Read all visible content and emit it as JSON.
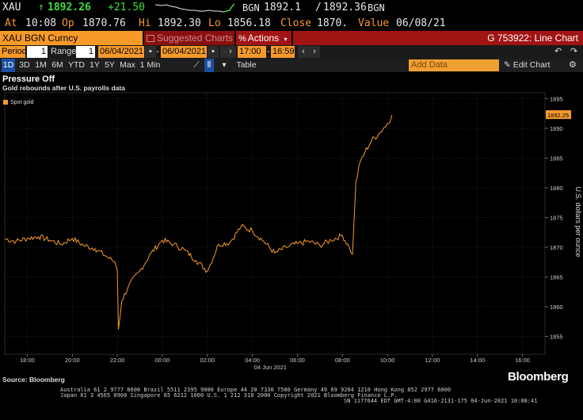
{
  "quote": {
    "ticker": "XAU",
    "arrow": "↑",
    "last": "1892.26",
    "change": "+21.50",
    "bid_source": "BGN",
    "bid": "1892.1",
    "ask_sep": "/",
    "ask": "1892.36",
    "ask_source": "BGN",
    "at_label": "At",
    "time": "10:08",
    "op_label": "Op",
    "open": "1870.76",
    "hi_label": "Hi",
    "high": "1892.30",
    "lo_label": "Lo",
    "low": "1856.18",
    "close_label": "Close",
    "close": "1870.",
    "value_label": "Value",
    "date": "06/08/21"
  },
  "security_bar": {
    "security": "XAU BGN Curncy",
    "suggested": "Suggested Charts",
    "actions": "Actions",
    "actions_icon": "percent-icon",
    "function_title": "G 753922: Line Chart"
  },
  "range_bar": {
    "period_label": "Period",
    "period_value": "1",
    "range_label": "Range",
    "range_value": "1",
    "start_date": "06/04/2021",
    "end_date": "06/04/2021",
    "start_time": "17:00",
    "end_time": "16:59"
  },
  "tabs_bar": {
    "tabs": [
      "1D",
      "3D",
      "1M",
      "6M",
      "YTD",
      "1Y",
      "5Y",
      "Max",
      "1 Min"
    ],
    "active_tab": "1D",
    "table_label": "Table",
    "add_data_placeholder": "Add Data",
    "edit_chart": "Edit Chart"
  },
  "chart_header": {
    "title": "Pressure Off",
    "subtitle": "Gold rebounds after U.S. payrolls data"
  },
  "chart_data": {
    "type": "line",
    "title": "Pressure Off",
    "subtitle": "Gold rebounds after U.S. payrolls data",
    "ylabel": "U.S. dollars per ounce",
    "xlabel": "04 Jun 2021",
    "ylim": [
      1852,
      1896
    ],
    "xlim": [
      17,
      41
    ],
    "y_ticks": [
      1855,
      1860,
      1865,
      1870,
      1875,
      1880,
      1885,
      1890,
      1895
    ],
    "x_tick_labels": [
      "18:00",
      "20:00",
      "22:00",
      "00:00",
      "02:00",
      "04:00",
      "06:00",
      "08:00",
      "10:00",
      "12:00",
      "14:00",
      "16:00"
    ],
    "x_ticks": [
      18,
      20,
      22,
      24,
      26,
      28,
      30,
      32,
      34,
      36,
      38,
      40
    ],
    "last_value_label": "1892.25",
    "legend_position": "top-left",
    "grid": true,
    "series": [
      {
        "name": "Spot gold",
        "color": "#f79a2a",
        "x": [
          17.0,
          17.5,
          18.0,
          18.5,
          19.0,
          19.5,
          20.0,
          20.5,
          21.0,
          21.5,
          21.9,
          22.0,
          22.05,
          22.2,
          22.5,
          23.0,
          23.5,
          24.0,
          24.5,
          25.0,
          25.5,
          26.0,
          26.5,
          27.0,
          27.5,
          28.0,
          28.5,
          29.0,
          29.5,
          30.0,
          30.5,
          31.0,
          31.5,
          32.0,
          32.3,
          32.45,
          32.6,
          32.8,
          33.0,
          33.3,
          33.6,
          34.0,
          34.2
        ],
        "y": [
          1871.4,
          1871.0,
          1871.5,
          1871.8,
          1871.2,
          1870.5,
          1871.5,
          1870.3,
          1869.8,
          1868.5,
          1867.5,
          1866.0,
          1856.2,
          1861.0,
          1863.5,
          1866.0,
          1869.0,
          1871.2,
          1870.5,
          1869.5,
          1867.8,
          1866.0,
          1870.5,
          1870.8,
          1873.5,
          1872.8,
          1871.0,
          1869.0,
          1870.0,
          1870.6,
          1871.0,
          1870.3,
          1871.2,
          1872.0,
          1870.0,
          1868.8,
          1881.0,
          1884.5,
          1886.0,
          1888.0,
          1889.0,
          1890.8,
          1892.25
        ]
      }
    ]
  },
  "footer": {
    "source": "Source: Bloomberg",
    "logo": "Bloomberg",
    "contact_line1": "Australia 61 2 9777 8600 Brazil 5511 2395 9000 Europe 44 20 7330 7500 Germany 49 69 9204 1210 Hong Kong 852 2977 6000",
    "contact_line2": "Japan 81 3 4565 8900       Singapore 65 6212 1000       U.S. 1 212 318 2000         Copyright 2021 Bloomberg Finance L.P.",
    "contact_line3": "SN 1177644 EDT  GMT-4:00 G416-2131-175 04-Jun-2021 10:08:41"
  }
}
